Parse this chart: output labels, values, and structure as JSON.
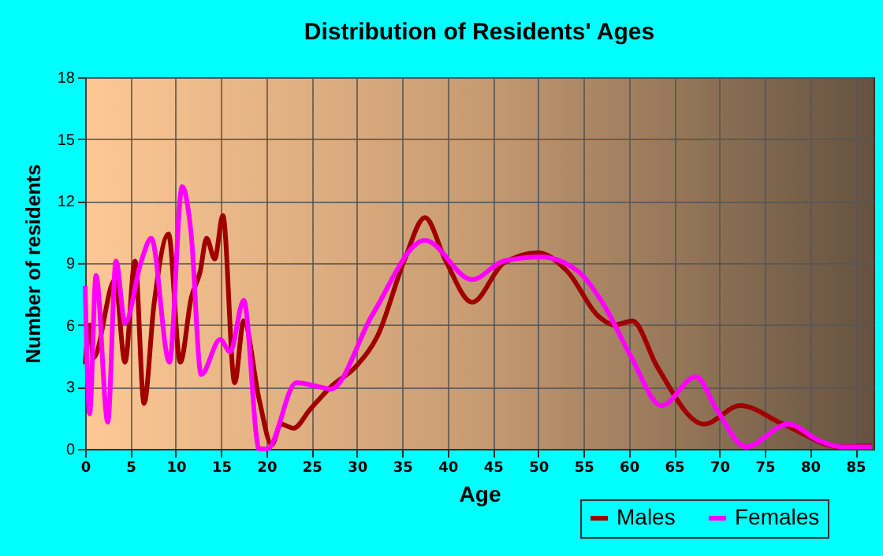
{
  "chart_data": {
    "type": "line",
    "title": "Distribution of Residents' Ages",
    "xlabel": "Age",
    "ylabel": "Number of residents",
    "xlim": [
      0,
      87
    ],
    "xticks": [
      0,
      5,
      10,
      15,
      20,
      25,
      30,
      35,
      40,
      45,
      50,
      55,
      60,
      65,
      70,
      75,
      80,
      85
    ],
    "ylim": [
      0,
      18
    ],
    "yticks": [
      0,
      3,
      6,
      9,
      12,
      15,
      18
    ],
    "grid": true,
    "legend": "bottom right",
    "series": [
      {
        "name": "Males",
        "color": "#a00000",
        "x": [
          0,
          0.5,
          0.9,
          3.3,
          4.4,
          5.5,
          6.5,
          7.6,
          9.2,
          10.5,
          11.7,
          12.7,
          13.4,
          14.3,
          15.2,
          16.5,
          17.5,
          19.2,
          20.6,
          21.6,
          23,
          24.8,
          27.1,
          29.9,
          32.3,
          35.2,
          37.5,
          39.8,
          42.7,
          46.2,
          50,
          53.2,
          56.7,
          58.4,
          60.4,
          63.1,
          68.3,
          72.3,
          77,
          83.4,
          86.8
        ],
        "values": [
          4.1,
          6,
          4.4,
          8.2,
          4.2,
          9.1,
          2.2,
          7,
          10.4,
          4.2,
          7.3,
          8.6,
          10.2,
          9.2,
          11.3,
          3.2,
          6.2,
          2.4,
          0.2,
          1.2,
          1,
          1.9,
          3,
          4,
          5.5,
          9.1,
          11.2,
          9.1,
          7.1,
          9,
          9.5,
          8.6,
          6.4,
          6,
          6.2,
          4,
          1.2,
          2.1,
          1.2,
          0.1,
          0.15
        ]
      },
      {
        "name": "Females",
        "color": "#ff00ff",
        "x": [
          0,
          0.5,
          1.2,
          2.5,
          3.4,
          4.4,
          6.2,
          7.3,
          9.3,
          10.7,
          11.7,
          12.8,
          14.9,
          16,
          17.5,
          19.2,
          20.1,
          23.3,
          25.9,
          27.1,
          31.7,
          37.5,
          42.7,
          46.2,
          50.3,
          54.4,
          57.2,
          60.2,
          63.6,
          67.4,
          69.7,
          72.9,
          77.6,
          81,
          83.4,
          86.8
        ],
        "values": [
          7.9,
          1.7,
          8.4,
          1.3,
          9.1,
          6.1,
          9.1,
          10.2,
          4.2,
          12.7,
          10.4,
          3.6,
          5.3,
          4.7,
          7.2,
          0,
          0,
          3.2,
          3,
          2.9,
          6.5,
          10.1,
          8.2,
          9.1,
          9.3,
          8.6,
          7,
          4.5,
          2.1,
          3.5,
          1.9,
          0.1,
          1.2,
          0.4,
          0.1,
          0.1
        ]
      }
    ]
  }
}
